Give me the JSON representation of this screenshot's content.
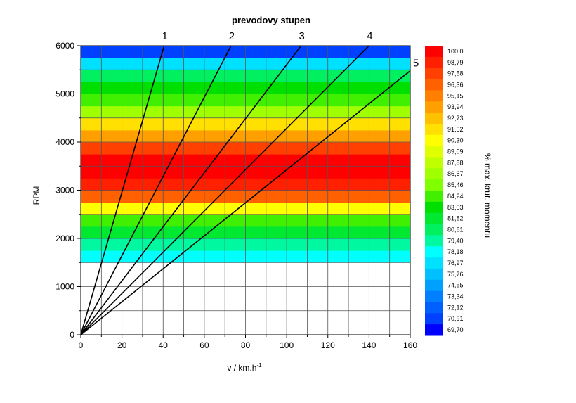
{
  "chart_data": {
    "type": "heatmap",
    "title": "prevodovy stupen",
    "xlabel": "v / km.h",
    "xlabel_superscript": "-1",
    "ylabel": "RPM",
    "xlim": [
      0,
      160
    ],
    "ylim": [
      0,
      6000
    ],
    "x_ticks": [
      0,
      20,
      40,
      60,
      80,
      100,
      120,
      140,
      160
    ],
    "y_ticks": [
      0,
      1000,
      2000,
      3000,
      4000,
      5000,
      6000
    ],
    "x_tick_labels": [
      "0",
      "20",
      "40",
      "60",
      "80",
      "100",
      "120",
      "140",
      "160"
    ],
    "y_tick_labels": [
      "0",
      "1000",
      "2000",
      "3000",
      "4000",
      "5000",
      "6000"
    ],
    "grid": true,
    "heatmap_rpm_range": [
      1500,
      6000
    ],
    "heatmap_band_step": 250,
    "heatmap_bands_percent": [
      {
        "rpm_from": 1500,
        "rpm_to": 1750,
        "value": 77.6
      },
      {
        "rpm_from": 1750,
        "rpm_to": 2000,
        "value": 80.0
      },
      {
        "rpm_from": 2000,
        "rpm_to": 2250,
        "value": 82.4
      },
      {
        "rpm_from": 2250,
        "rpm_to": 2500,
        "value": 84.8
      },
      {
        "rpm_from": 2500,
        "rpm_to": 2750,
        "value": 90.9
      },
      {
        "rpm_from": 2750,
        "rpm_to": 3000,
        "value": 95.8
      },
      {
        "rpm_from": 3000,
        "rpm_to": 3250,
        "value": 98.8
      },
      {
        "rpm_from": 3250,
        "rpm_to": 3500,
        "value": 100.0
      },
      {
        "rpm_from": 3500,
        "rpm_to": 3750,
        "value": 99.4
      },
      {
        "rpm_from": 3750,
        "rpm_to": 4000,
        "value": 97.0
      },
      {
        "rpm_from": 4000,
        "rpm_to": 4250,
        "value": 94.5
      },
      {
        "rpm_from": 4250,
        "rpm_to": 4500,
        "value": 91.5
      },
      {
        "rpm_from": 4500,
        "rpm_to": 4750,
        "value": 86.1
      },
      {
        "rpm_from": 4750,
        "rpm_to": 5000,
        "value": 84.8
      },
      {
        "rpm_from": 5000,
        "rpm_to": 5250,
        "value": 83.6
      },
      {
        "rpm_from": 5250,
        "rpm_to": 5500,
        "value": 81.2
      },
      {
        "rpm_from": 5500,
        "rpm_to": 5750,
        "value": 77.0
      },
      {
        "rpm_from": 5750,
        "rpm_to": 6000,
        "value": 71.5
      }
    ],
    "series": [
      {
        "name": "1",
        "x": [
          0,
          40.5
        ],
        "y": [
          0,
          6000
        ]
      },
      {
        "name": "2",
        "x": [
          0,
          73
        ],
        "y": [
          0,
          6000
        ]
      },
      {
        "name": "3",
        "x": [
          0,
          107
        ],
        "y": [
          0,
          6000
        ]
      },
      {
        "name": "4",
        "x": [
          0,
          140
        ],
        "y": [
          0,
          6000
        ]
      },
      {
        "name": "5",
        "x": [
          0,
          160
        ],
        "y": [
          0,
          5480
        ]
      }
    ],
    "colorbar": {
      "title": "% max. krut. momentu",
      "min": 69.7,
      "max": 100.0,
      "labels": [
        "100,0",
        "98,79",
        "97,58",
        "96,36",
        "95,15",
        "93,94",
        "92,73",
        "91,52",
        "90,30",
        "89,09",
        "87,88",
        "86,67",
        "85,46",
        "84,24",
        "83,03",
        "81,82",
        "80,61",
        "79,40",
        "78,18",
        "76,97",
        "75,76",
        "74,55",
        "73,34",
        "72,12",
        "70,91",
        "69,70"
      ],
      "colors": [
        "#ff0000",
        "#ff2000",
        "#ff4000",
        "#ff6000",
        "#ff8000",
        "#ffa000",
        "#ffc000",
        "#ffe000",
        "#ffff00",
        "#e0ff00",
        "#c0ff00",
        "#a0ff00",
        "#80ff00",
        "#40f000",
        "#00e000",
        "#00e830",
        "#00f060",
        "#00f8a0",
        "#00ffff",
        "#00e0ff",
        "#00c0ff",
        "#00a0ff",
        "#0080ff",
        "#0060ff",
        "#0040ff",
        "#0000ff"
      ]
    }
  }
}
